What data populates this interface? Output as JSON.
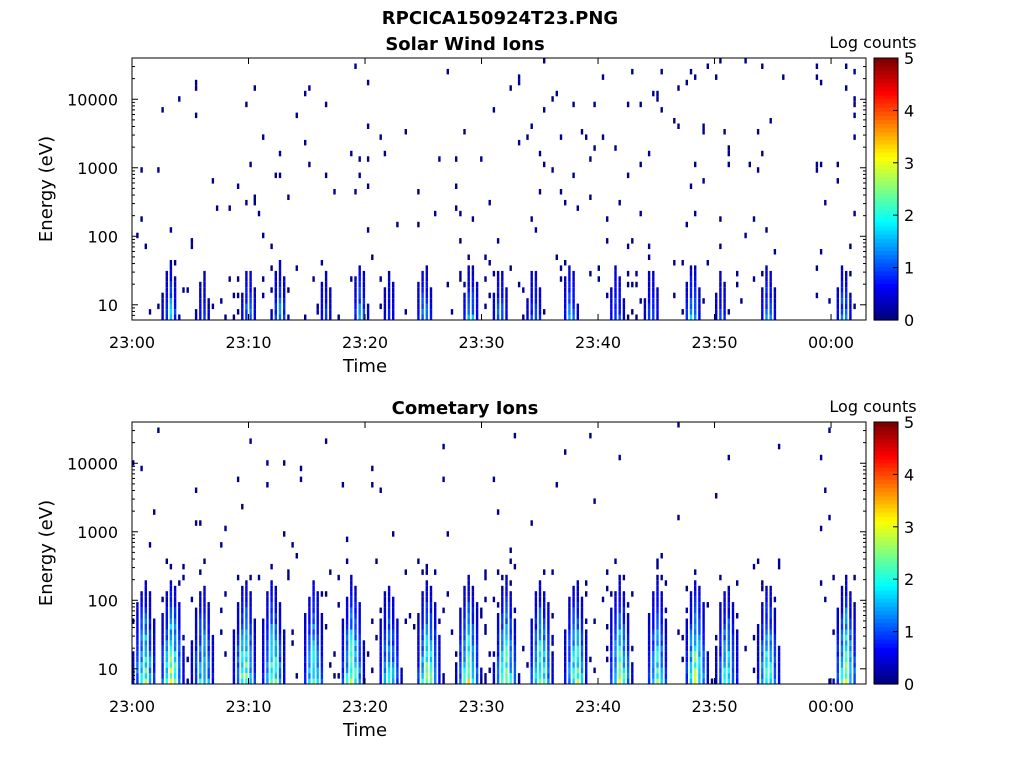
{
  "figure": {
    "title": "RPCICA150924T23.PNG"
  },
  "colorbar": {
    "label": "Log counts",
    "ticks": [
      "0",
      "1",
      "2",
      "3",
      "4",
      "5"
    ],
    "range": [
      0,
      5
    ],
    "colormap": "jet"
  },
  "chart_data": [
    {
      "type": "heatmap",
      "title": "Solar Wind Ions",
      "xlabel": "Time",
      "ylabel": "Energy (eV)",
      "yscale": "log",
      "xlim": [
        "23:00",
        "00:03"
      ],
      "ylim": [
        6,
        40000
      ],
      "xticks": [
        "23:00",
        "23:10",
        "23:20",
        "23:30",
        "23:40",
        "23:50",
        "00:00"
      ],
      "yticks": [
        "10",
        "100",
        "1000",
        "10000"
      ],
      "colorbar": "Log counts",
      "data_gap_minutes": [
        56,
        58.5
      ],
      "bursts": [
        {
          "t": 3.2,
          "peak": 1.8
        },
        {
          "t": 6.0,
          "peak": 0.9
        },
        {
          "t": 9.9,
          "peak": 1.5
        },
        {
          "t": 12.6,
          "peak": 1.6
        },
        {
          "t": 16.5,
          "peak": 1.0
        },
        {
          "t": 19.5,
          "peak": 1.6
        },
        {
          "t": 22.0,
          "peak": 0.9
        },
        {
          "t": 25.0,
          "peak": 1.8
        },
        {
          "t": 29.0,
          "peak": 1.8
        },
        {
          "t": 31.5,
          "peak": 1.5
        },
        {
          "t": 34.5,
          "peak": 1.4
        },
        {
          "t": 37.5,
          "peak": 1.7
        },
        {
          "t": 41.5,
          "peak": 1.3
        },
        {
          "t": 44.5,
          "peak": 1.2
        },
        {
          "t": 48.0,
          "peak": 1.9
        },
        {
          "t": 50.5,
          "peak": 1.0
        },
        {
          "t": 54.5,
          "peak": 1.6
        },
        {
          "t": 61.0,
          "peak": 1.6
        }
      ]
    },
    {
      "type": "heatmap",
      "title": "Cometary Ions",
      "xlabel": "Time",
      "ylabel": "Energy (eV)",
      "yscale": "log",
      "xlim": [
        "23:00",
        "00:03"
      ],
      "ylim": [
        6,
        40000
      ],
      "xticks": [
        "23:00",
        "23:10",
        "23:20",
        "23:30",
        "23:40",
        "23:50",
        "00:00"
      ],
      "yticks": [
        "10",
        "100",
        "1000",
        "10000"
      ],
      "colorbar": "Log counts",
      "data_gap_minutes": [
        56,
        58.5
      ],
      "bursts": [
        {
          "t": 1.0,
          "peak": 2.7
        },
        {
          "t": 3.3,
          "peak": 3.2
        },
        {
          "t": 6.0,
          "peak": 2.3
        },
        {
          "t": 9.6,
          "peak": 2.9
        },
        {
          "t": 12.0,
          "peak": 2.9
        },
        {
          "t": 15.5,
          "peak": 2.4
        },
        {
          "t": 18.8,
          "peak": 3.0
        },
        {
          "t": 22.0,
          "peak": 2.2
        },
        {
          "t": 25.3,
          "peak": 3.0
        },
        {
          "t": 28.8,
          "peak": 3.0
        },
        {
          "t": 32.0,
          "peak": 2.9
        },
        {
          "t": 35.0,
          "peak": 2.9
        },
        {
          "t": 38.0,
          "peak": 2.9
        },
        {
          "t": 41.8,
          "peak": 2.9
        },
        {
          "t": 45.0,
          "peak": 2.4
        },
        {
          "t": 48.3,
          "peak": 3.1
        },
        {
          "t": 51.0,
          "peak": 2.4
        },
        {
          "t": 54.5,
          "peak": 2.6
        },
        {
          "t": 61.2,
          "peak": 3.0
        }
      ]
    }
  ]
}
